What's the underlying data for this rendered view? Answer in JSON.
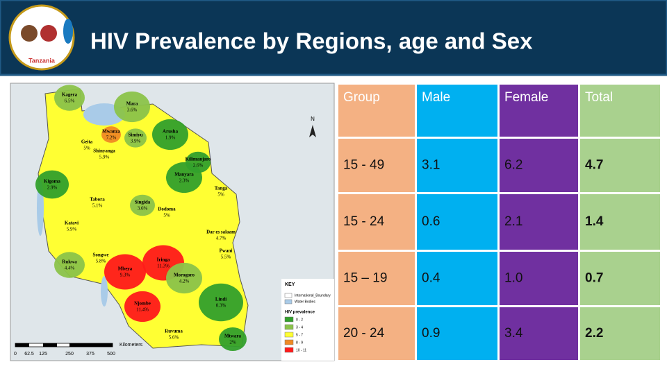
{
  "header": {
    "title": "HIV Prevalence by Regions, age and Sex",
    "logo_text": "Tanzania"
  },
  "map": {
    "regions": [
      {
        "name": "Kagera",
        "value": "6.5%"
      },
      {
        "name": "Mara",
        "value": "3.6%"
      },
      {
        "name": "Mwanza",
        "value": "7.2%"
      },
      {
        "name": "Simiyu",
        "value": "3.9%"
      },
      {
        "name": "Geita",
        "value": "5%"
      },
      {
        "name": "Shinyanga",
        "value": "5.9%"
      },
      {
        "name": "Arusha",
        "value": "1.9%"
      },
      {
        "name": "Kilimanjaro",
        "value": "2.6%"
      },
      {
        "name": "Manyara",
        "value": "2.3%"
      },
      {
        "name": "Kigoma",
        "value": "2.9%"
      },
      {
        "name": "Tabora",
        "value": "5.1%"
      },
      {
        "name": "Singida",
        "value": "3.6%"
      },
      {
        "name": "Dodoma",
        "value": "5%"
      },
      {
        "name": "Tanga",
        "value": "5%"
      },
      {
        "name": "Katavi",
        "value": "5.9%"
      },
      {
        "name": "Dar es salaam",
        "value": "4.7%"
      },
      {
        "name": "Pwani",
        "value": "5.5%"
      },
      {
        "name": "Rukwa",
        "value": "4.4%"
      },
      {
        "name": "Songwe",
        "value": "5.8%"
      },
      {
        "name": "Mbeya",
        "value": "9.3%"
      },
      {
        "name": "Iringa",
        "value": "11.3%"
      },
      {
        "name": "Morogoro",
        "value": "4.2%"
      },
      {
        "name": "Njombe",
        "value": "11.4%"
      },
      {
        "name": "Lindi",
        "value": "0.3%"
      },
      {
        "name": "Ruvuma",
        "value": "5.6%"
      },
      {
        "name": "Mtwara",
        "value": "2%"
      }
    ],
    "north": "N",
    "key": {
      "title": "KEY",
      "items": [
        "International_Boundary",
        "Water Bodies"
      ],
      "legend_title": "HIV prevalence",
      "classes": [
        "0 - 2",
        "3 - 4",
        "5 - 7",
        "8 - 9",
        "10 - 11"
      ]
    },
    "scale": {
      "ticks": [
        "0",
        "62.5",
        "125",
        "250",
        "375",
        "500"
      ],
      "unit": "Kilometers"
    }
  },
  "table": {
    "header": [
      "Group",
      "Male",
      "Female",
      "Total"
    ],
    "rows": [
      [
        "15 - 49",
        "3.1",
        "6.2",
        "4.7"
      ],
      [
        "15 - 24",
        "0.6",
        "2.1",
        "1.4"
      ],
      [
        "15 – 19",
        "0.4",
        "1.0",
        "0.7"
      ],
      [
        "20 - 24",
        "0.9",
        "3.4",
        "2.2"
      ]
    ]
  }
}
